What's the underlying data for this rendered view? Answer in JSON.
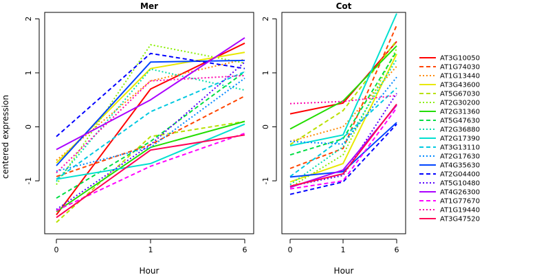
{
  "chart_data": [
    {
      "type": "line",
      "title": "Mer",
      "xlabel": "Hour",
      "ylabel": "centered expression",
      "categories": [
        "0",
        "1",
        "6"
      ],
      "yticks": [
        -1,
        0,
        1,
        2
      ],
      "ylim": [
        -1.98,
        2.12
      ],
      "grid": false,
      "series": [
        {
          "name": "AT3G10050",
          "color": "#ff0000",
          "style": "solid",
          "values": [
            -1.63,
            0.7,
            1.55
          ]
        },
        {
          "name": "AT1G74030",
          "color": "#ff4400",
          "style": "dashed",
          "values": [
            -0.92,
            -0.33,
            0.57
          ]
        },
        {
          "name": "AT1G13440",
          "color": "#ff8800",
          "style": "dotted",
          "values": [
            -0.62,
            0.85,
            1.25
          ]
        },
        {
          "name": "AT3G43600",
          "color": "#e8e800",
          "style": "solid",
          "values": [
            -0.67,
            1.08,
            1.38
          ]
        },
        {
          "name": "AT5G67030",
          "color": "#b8e000",
          "style": "dashed",
          "values": [
            -1.77,
            -0.18,
            0.1
          ]
        },
        {
          "name": "AT2G30200",
          "color": "#88ee00",
          "style": "dotted",
          "values": [
            -1.07,
            1.52,
            1.18
          ]
        },
        {
          "name": "AT2G31360",
          "color": "#22dd00",
          "style": "solid",
          "values": [
            -1.57,
            -0.38,
            0.1
          ]
        },
        {
          "name": "AT5G47630",
          "color": "#00dd44",
          "style": "dashed",
          "values": [
            -1.32,
            -0.27,
            1.02
          ]
        },
        {
          "name": "AT2G36880",
          "color": "#00ddaa",
          "style": "dotted",
          "values": [
            -1.01,
            1.07,
            0.68
          ]
        },
        {
          "name": "AT2G17390",
          "color": "#00e0d0",
          "style": "solid",
          "values": [
            -0.97,
            -0.68,
            0.05
          ]
        },
        {
          "name": "AT3G13110",
          "color": "#00c8e0",
          "style": "dashed",
          "values": [
            -0.97,
            0.28,
            1.02
          ]
        },
        {
          "name": "AT2G17630",
          "color": "#0088ff",
          "style": "dotted",
          "values": [
            -0.82,
            -0.38,
            0.9
          ]
        },
        {
          "name": "AT4G35630",
          "color": "#0044ff",
          "style": "solid",
          "values": [
            -0.72,
            1.2,
            1.23
          ]
        },
        {
          "name": "AT2G04400",
          "color": "#0000ff",
          "style": "dashed",
          "values": [
            -0.18,
            1.36,
            1.08
          ]
        },
        {
          "name": "AT5G10480",
          "color": "#5500ff",
          "style": "dotted",
          "values": [
            -1.53,
            -0.33,
            1.2
          ]
        },
        {
          "name": "AT4G26300",
          "color": "#aa00ff",
          "style": "solid",
          "values": [
            -0.42,
            0.5,
            1.65
          ]
        },
        {
          "name": "AT1G77670",
          "color": "#ff00ff",
          "style": "dashed",
          "values": [
            -1.55,
            -0.73,
            -0.12
          ]
        },
        {
          "name": "AT1G19440",
          "color": "#ff00aa",
          "style": "dotted",
          "values": [
            -0.85,
            0.85,
            0.95
          ]
        },
        {
          "name": "AT3G47520",
          "color": "#ff0055",
          "style": "solid",
          "values": [
            -1.68,
            -0.43,
            -0.15
          ]
        }
      ]
    },
    {
      "type": "line",
      "title": "Cot",
      "xlabel": "Hour",
      "ylabel": "",
      "categories": [
        "0",
        "1",
        "6"
      ],
      "yticks": [
        -1,
        0,
        1,
        2
      ],
      "ylim": [
        -1.98,
        2.12
      ],
      "grid": false,
      "series": [
        {
          "name": "AT3G10050",
          "color": "#ff0000",
          "style": "solid",
          "values": [
            0.24,
            0.44,
            1.58
          ]
        },
        {
          "name": "AT1G74030",
          "color": "#ff4400",
          "style": "dashed",
          "values": [
            -0.77,
            -0.4,
            1.88
          ]
        },
        {
          "name": "AT1G13440",
          "color": "#ff8800",
          "style": "dotted",
          "values": [
            -0.27,
            0.0,
            1.12
          ]
        },
        {
          "name": "AT3G43600",
          "color": "#e8e800",
          "style": "solid",
          "values": [
            -1.02,
            -0.68,
            1.35
          ]
        },
        {
          "name": "AT5G67030",
          "color": "#b8e000",
          "style": "dashed",
          "values": [
            -0.33,
            0.3,
            1.6
          ]
        },
        {
          "name": "AT2G30200",
          "color": "#88ee00",
          "style": "dotted",
          "values": [
            -1.12,
            -0.52,
            1.45
          ]
        },
        {
          "name": "AT2G31360",
          "color": "#22dd00",
          "style": "solid",
          "values": [
            -0.04,
            0.48,
            1.5
          ]
        },
        {
          "name": "AT5G47630",
          "color": "#00dd44",
          "style": "dashed",
          "values": [
            -0.52,
            -0.22,
            1.4
          ]
        },
        {
          "name": "AT2G36880",
          "color": "#00ddaa",
          "style": "dotted",
          "values": [
            -1.07,
            -0.37,
            1.25
          ]
        },
        {
          "name": "AT2G17390",
          "color": "#00e0d0",
          "style": "solid",
          "values": [
            -0.35,
            -0.15,
            2.1
          ]
        },
        {
          "name": "AT3G13110",
          "color": "#00c8e0",
          "style": "dashed",
          "values": [
            -0.92,
            -0.2,
            0.72
          ]
        },
        {
          "name": "AT2G17630",
          "color": "#0088ff",
          "style": "dotted",
          "values": [
            -0.27,
            -0.32,
            0.92
          ]
        },
        {
          "name": "AT4G35630",
          "color": "#0044ff",
          "style": "solid",
          "values": [
            -0.93,
            -0.83,
            0.08
          ]
        },
        {
          "name": "AT2G04400",
          "color": "#0000ff",
          "style": "dashed",
          "values": [
            -1.25,
            -1.02,
            0.05
          ]
        },
        {
          "name": "AT5G10480",
          "color": "#5500ff",
          "style": "dotted",
          "values": [
            -1.1,
            -0.9,
            0.62
          ]
        },
        {
          "name": "AT4G26300",
          "color": "#aa00ff",
          "style": "solid",
          "values": [
            -1.12,
            -0.8,
            0.4
          ]
        },
        {
          "name": "AT1G77670",
          "color": "#ff00ff",
          "style": "dashed",
          "values": [
            -1.15,
            -1.0,
            0.35
          ]
        },
        {
          "name": "AT1G19440",
          "color": "#ff00aa",
          "style": "dotted",
          "values": [
            0.43,
            0.47,
            0.58
          ]
        },
        {
          "name": "AT3G47520",
          "color": "#ff0055",
          "style": "solid",
          "values": [
            -1.1,
            -0.87,
            0.42
          ]
        }
      ]
    }
  ],
  "legend": {
    "placement": "right",
    "entries": [
      {
        "name": "AT3G10050",
        "color": "#ff0000",
        "style": "solid"
      },
      {
        "name": "AT1G74030",
        "color": "#ff4400",
        "style": "dashed"
      },
      {
        "name": "AT1G13440",
        "color": "#ff8800",
        "style": "dotted"
      },
      {
        "name": "AT3G43600",
        "color": "#e8e800",
        "style": "solid"
      },
      {
        "name": "AT5G67030",
        "color": "#b8e000",
        "style": "dashed"
      },
      {
        "name": "AT2G30200",
        "color": "#88ee00",
        "style": "dotted"
      },
      {
        "name": "AT2G31360",
        "color": "#22dd00",
        "style": "solid"
      },
      {
        "name": "AT5G47630",
        "color": "#00dd44",
        "style": "dashed"
      },
      {
        "name": "AT2G36880",
        "color": "#00ddaa",
        "style": "dotted"
      },
      {
        "name": "AT2G17390",
        "color": "#00e0d0",
        "style": "solid"
      },
      {
        "name": "AT3G13110",
        "color": "#00c8e0",
        "style": "dashed"
      },
      {
        "name": "AT2G17630",
        "color": "#0088ff",
        "style": "dotted"
      },
      {
        "name": "AT4G35630",
        "color": "#0044ff",
        "style": "solid"
      },
      {
        "name": "AT2G04400",
        "color": "#0000ff",
        "style": "dashed"
      },
      {
        "name": "AT5G10480",
        "color": "#5500ff",
        "style": "dotted"
      },
      {
        "name": "AT4G26300",
        "color": "#aa00ff",
        "style": "solid"
      },
      {
        "name": "AT1G77670",
        "color": "#ff00ff",
        "style": "dashed"
      },
      {
        "name": "AT1G19440",
        "color": "#ff00aa",
        "style": "dotted"
      },
      {
        "name": "AT3G47520",
        "color": "#ff0055",
        "style": "solid"
      }
    ]
  }
}
